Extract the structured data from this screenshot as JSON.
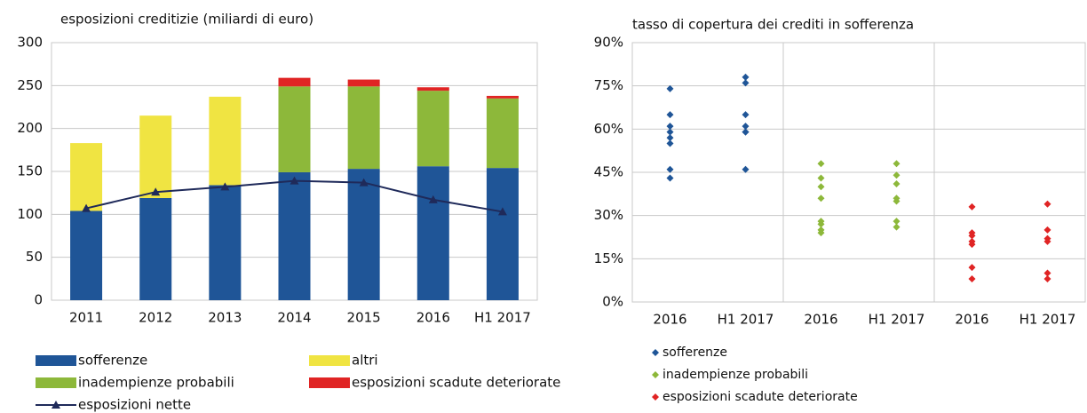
{
  "chart_data": [
    {
      "type": "bar",
      "stacked": true,
      "title": "esposizioni creditizie (miliardi di euro)",
      "categories": [
        "2011",
        "2012",
        "2013",
        "2014",
        "2015",
        "2016",
        "H1 2017"
      ],
      "ylim": [
        0,
        300
      ],
      "yticks": [
        0,
        50,
        100,
        150,
        200,
        250,
        300
      ],
      "grid": true,
      "series": [
        {
          "name": "sofferenze",
          "color": "#1f5597",
          "values": [
            104,
            119,
            134,
            149,
            153,
            156,
            154
          ]
        },
        {
          "name": "altri",
          "color": "#f0e442",
          "values": [
            79,
            96,
            103,
            null,
            null,
            null,
            null
          ]
        },
        {
          "name": "inadempienze probabili",
          "color": "#8db83a",
          "values": [
            null,
            null,
            null,
            100,
            96,
            88,
            81
          ]
        },
        {
          "name": "esposizioni scadute deteriorate",
          "color": "#e02424",
          "values": [
            null,
            null,
            null,
            10,
            8,
            4,
            3
          ]
        },
        {
          "name": "esposizioni nette",
          "color": "#1f2a5a",
          "type": "line",
          "values": [
            107,
            126,
            132,
            139,
            137,
            117,
            103
          ]
        }
      ]
    },
    {
      "type": "scatter",
      "title": "tasso di copertura dei crediti in sofferenza",
      "categories": [
        "2016",
        "H1 2017",
        "2016",
        "H1 2017",
        "2016",
        "H1 2017"
      ],
      "ylim": [
        0,
        90
      ],
      "yticks": [
        {
          "value": 0,
          "label": "0%"
        },
        {
          "value": 15,
          "label": "15%"
        },
        {
          "value": 30,
          "label": "30%"
        },
        {
          "value": 45,
          "label": "45%"
        },
        {
          "value": 60,
          "label": "60%"
        },
        {
          "value": 75,
          "label": "75%"
        },
        {
          "value": 90,
          "label": "90%"
        }
      ],
      "grid": true,
      "series": [
        {
          "name": "sofferenze",
          "color": "#1f5597",
          "values": [
            [
              74,
              65,
              61,
              59,
              57,
              55,
              46,
              43
            ],
            [
              78,
              76,
              65,
              61,
              59,
              59,
              46
            ],
            null,
            null,
            null,
            null
          ]
        },
        {
          "name": "inadempienze probabili",
          "color": "#8db83a",
          "values": [
            null,
            null,
            [
              48,
              43,
              40,
              36,
              28,
              27,
              25,
              24
            ],
            [
              48,
              44,
              41,
              36,
              35,
              28,
              26
            ],
            null,
            null
          ]
        },
        {
          "name": "esposizioni scadute deteriorate",
          "color": "#e02424",
          "values": [
            null,
            null,
            null,
            null,
            [
              33,
              24,
              23,
              21,
              20,
              12,
              8
            ],
            [
              34,
              25,
              22,
              21,
              10,
              8
            ]
          ]
        }
      ]
    }
  ]
}
